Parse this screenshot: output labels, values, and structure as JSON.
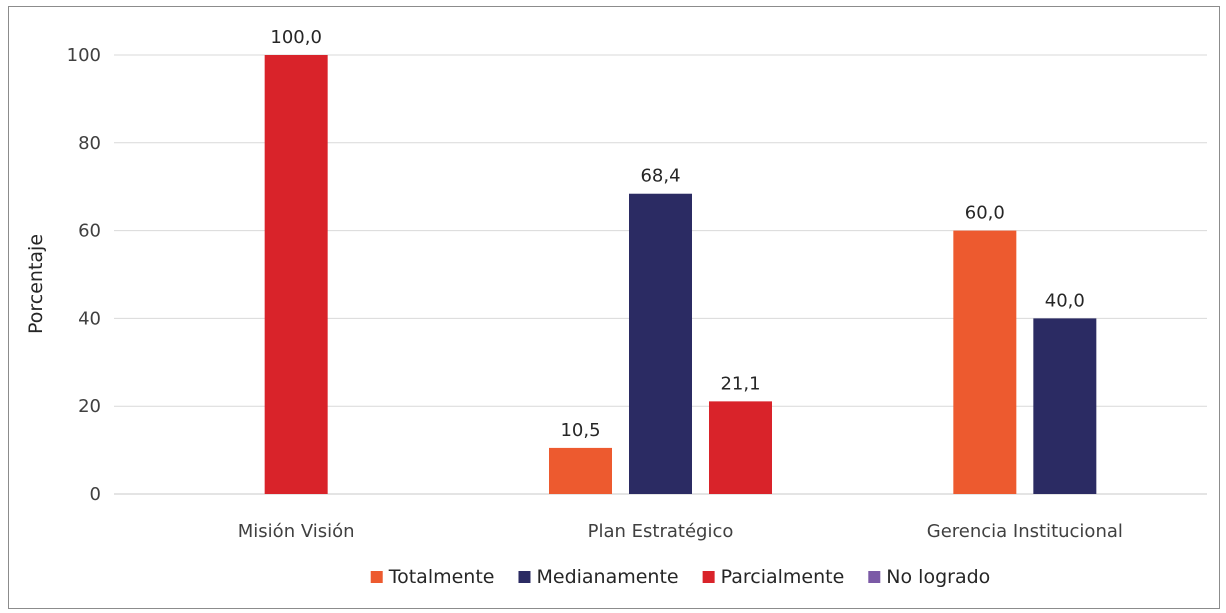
{
  "chart_data": {
    "type": "bar",
    "title": "",
    "xlabel": "",
    "ylabel": "Porcentaje",
    "ylim": [
      0,
      100
    ],
    "yticks": [
      0,
      20,
      40,
      60,
      80,
      100
    ],
    "grid": true,
    "legend_position": "bottom",
    "categories": [
      "Misión Visión",
      "Plan Estratégico",
      "Gerencia Institucional"
    ],
    "series": [
      {
        "name": "Totalmente",
        "color": "#ed5a2f",
        "values": [
          null,
          10.5,
          60.0
        ],
        "labels": [
          "",
          "10,5",
          "60,0"
        ]
      },
      {
        "name": "Medianamente",
        "color": "#2b2b63",
        "values": [
          null,
          68.4,
          40.0
        ],
        "labels": [
          "",
          "68,4",
          "40,0"
        ]
      },
      {
        "name": "Parcialmente",
        "color": "#d9232a",
        "values": [
          100.0,
          21.1,
          null
        ],
        "labels": [
          "100,0",
          "21,1",
          ""
        ]
      },
      {
        "name": "No logrado",
        "color": "#7b5aa6",
        "values": [
          null,
          null,
          null
        ],
        "labels": [
          "",
          "",
          ""
        ]
      }
    ]
  }
}
